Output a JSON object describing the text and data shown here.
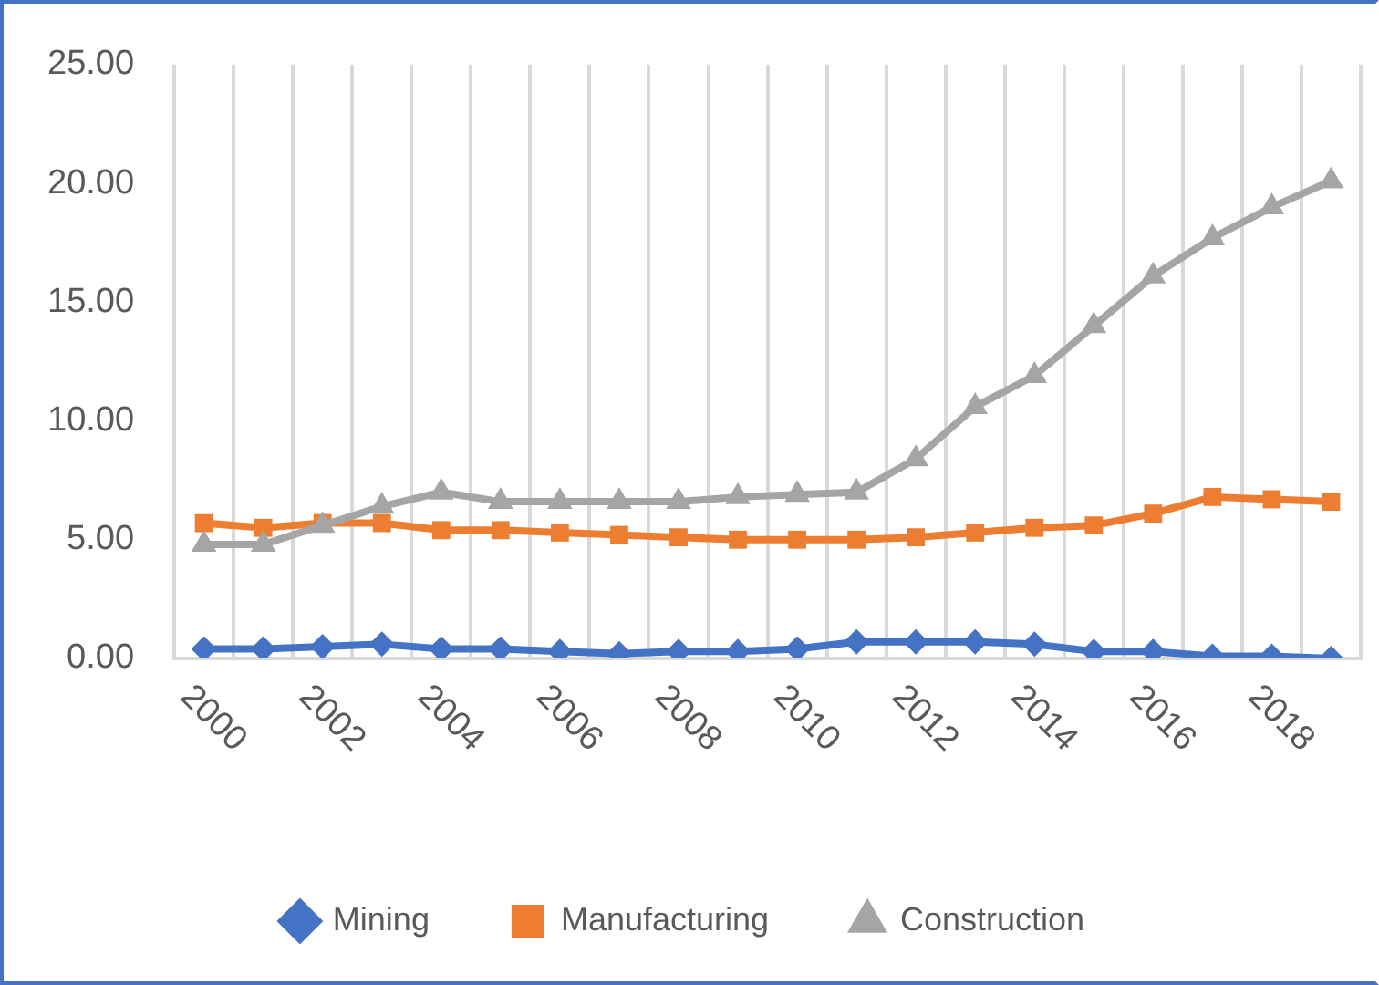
{
  "chart_data": {
    "type": "line",
    "categories": [
      "2000",
      null,
      "2002",
      null,
      "2004",
      null,
      "2006",
      null,
      "2008",
      null,
      "2010",
      null,
      "2012",
      null,
      "2014",
      null,
      "2016",
      null,
      "2018",
      null
    ],
    "series": [
      {
        "name": "Mining",
        "color": "#4472c4",
        "marker": "diamond",
        "values": [
          0.4,
          0.4,
          0.5,
          0.6,
          0.4,
          0.4,
          0.3,
          0.2,
          0.3,
          0.3,
          0.4,
          0.7,
          0.7,
          0.7,
          0.6,
          0.3,
          0.3,
          0.1,
          0.1,
          0
        ]
      },
      {
        "name": "Manufacturing",
        "color": "#ed7d31",
        "marker": "square",
        "values": [
          5.7,
          5.5,
          5.7,
          5.7,
          5.4,
          5.4,
          5.3,
          5.2,
          5.1,
          5.0,
          5.0,
          5.0,
          5.1,
          5.3,
          5.5,
          5.6,
          6.1,
          6.8,
          6.7,
          6.6
        ]
      },
      {
        "name": "Construction",
        "color": "#a5a5a5",
        "marker": "triangle",
        "values": [
          4.8,
          4.8,
          5.6,
          6.4,
          7.0,
          6.6,
          6.6,
          6.6,
          6.6,
          6.8,
          6.9,
          7.0,
          8.4,
          10.6,
          11.9,
          14.0,
          16.1,
          17.7,
          19.0,
          20.1
        ]
      }
    ],
    "ylim": [
      0,
      25
    ],
    "yticks": [
      {
        "value": 0,
        "label": "0.00"
      },
      {
        "value": 5,
        "label": "5.00"
      },
      {
        "value": 10,
        "label": "10.00"
      },
      {
        "value": 15,
        "label": "15.00"
      },
      {
        "value": 20,
        "label": "20.00"
      },
      {
        "value": 25,
        "label": "25.00"
      }
    ],
    "grid": "x",
    "legend": "bottom",
    "line_style": "solid"
  }
}
